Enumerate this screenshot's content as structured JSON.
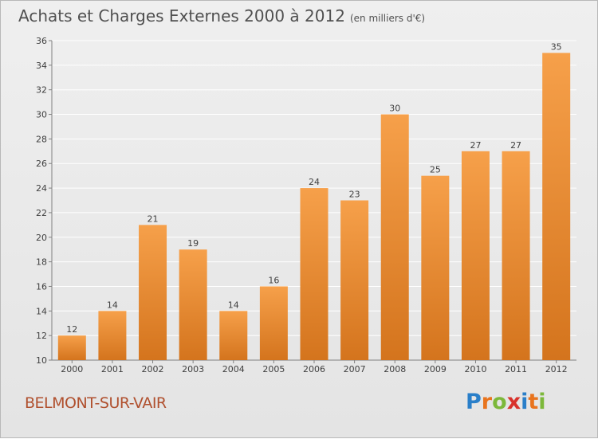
{
  "title": "Achats et Charges Externes 2000 à 2012",
  "subtitle": "(en milliers d'€)",
  "commune": "BELMONT-SUR-VAIR",
  "logo": {
    "letters": [
      "P",
      "r",
      "o",
      "x",
      "i",
      "t",
      "i"
    ],
    "colors": [
      "#2a7fc9",
      "#e8741e",
      "#7cb83a",
      "#d8322c",
      "#2a7fc9",
      "#e8741e",
      "#7cb83a"
    ]
  },
  "colors": {
    "bar_top": "#f6a04a",
    "bar_bottom": "#d4741d",
    "grid": "#ffffff",
    "text": "#404040"
  },
  "chart_data": {
    "type": "bar",
    "title": "Achats et Charges Externes 2000 à 2012",
    "subtitle": "(en milliers d'€)",
    "categories": [
      "2000",
      "2001",
      "2002",
      "2003",
      "2004",
      "2005",
      "2006",
      "2007",
      "2008",
      "2009",
      "2010",
      "2011",
      "2012"
    ],
    "values": [
      12,
      14,
      21,
      19,
      14,
      16,
      24,
      23,
      30,
      25,
      27,
      27,
      35
    ],
    "ylim": [
      10,
      36
    ],
    "yticks": [
      10,
      12,
      14,
      16,
      18,
      20,
      22,
      24,
      26,
      28,
      30,
      32,
      34,
      36
    ],
    "grid": true,
    "xlabel": "",
    "ylabel": ""
  }
}
